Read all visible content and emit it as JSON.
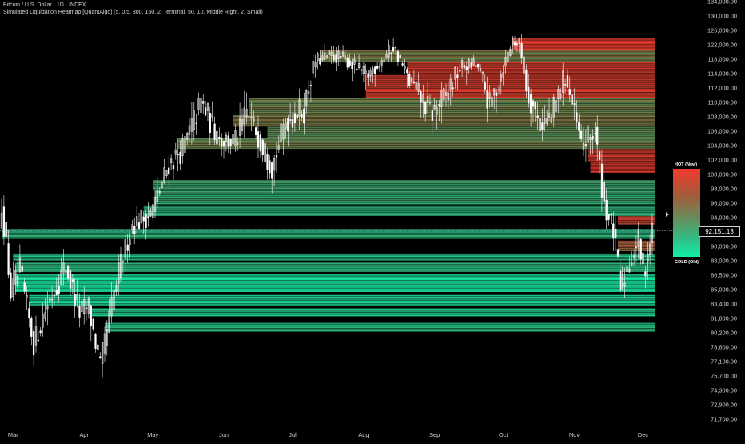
{
  "header": {
    "title": "Bitcoin / U.S. Dollar · 1D · INDEX",
    "indicator": "Simulated Liquidation Heatmap [QuantAlgo] (5, 0.5, 300, 150, 2, Terminal, 50, 10, Middle Right, 2, Small)"
  },
  "legend": {
    "hot_label": "HOT (New)",
    "cold_label": "COLD (Old)",
    "hot_color": "#f23a2e",
    "cold_color": "#12f0a6"
  },
  "current_price": "92,151.13",
  "colors": {
    "background": "#000000",
    "candle_up": "#ffffff",
    "candle_down": "#ffffff",
    "axis_text": "#d1d4dc"
  },
  "chart_data": {
    "type": "candlestick-with-heatmap",
    "y_scale": "log",
    "ylim": [
      71000,
      135000
    ],
    "y_ticks": [
      "134,000.00",
      "130,000.00",
      "126,000.00",
      "122,000.00",
      "118,000.00",
      "114,000.00",
      "112,000.00",
      "110,000.00",
      "108,000.00",
      "106,000.00",
      "104,000.00",
      "102,000.00",
      "100,000.00",
      "98,000.00",
      "96,000.00",
      "94,000.00",
      "92,000.00",
      "90,000.00",
      "88,000.00",
      "86,500.00",
      "85,000.00",
      "83,400.00",
      "81,800.00",
      "80,200.00",
      "78,600.00",
      "77,100.00",
      "75,700.00",
      "74,300.00",
      "72,900.00",
      "71,700.00"
    ],
    "x_ticks": [
      {
        "label": "Mar",
        "date": "2025-03-01"
      },
      {
        "label": "Apr",
        "date": "2025-04-01"
      },
      {
        "label": "May",
        "date": "2025-05-01"
      },
      {
        "label": "Jun",
        "date": "2025-06-01"
      },
      {
        "label": "Jul",
        "date": "2025-07-01"
      },
      {
        "label": "Aug",
        "date": "2025-08-01"
      },
      {
        "label": "Sep",
        "date": "2025-09-01"
      },
      {
        "label": "Oct",
        "date": "2025-10-01"
      },
      {
        "label": "Nov",
        "date": "2025-11-01"
      },
      {
        "label": "Dec",
        "date": "2025-12-01"
      }
    ],
    "x_start_date": "2025-02-24",
    "x_end_date": "2025-12-05",
    "price_path": [
      [
        "2025-02-24",
        96000
      ],
      [
        "2025-02-28",
        84500
      ],
      [
        "2025-03-04",
        87000
      ],
      [
        "2025-03-10",
        79000
      ],
      [
        "2025-03-16",
        83500
      ],
      [
        "2025-03-24",
        87500
      ],
      [
        "2025-03-30",
        82500
      ],
      [
        "2025-04-03",
        83000
      ],
      [
        "2025-04-08",
        76500
      ],
      [
        "2025-04-14",
        84500
      ],
      [
        "2025-04-22",
        93000
      ],
      [
        "2025-04-30",
        94500
      ],
      [
        "2025-05-08",
        101500
      ],
      [
        "2025-05-14",
        103500
      ],
      [
        "2025-05-22",
        110000
      ],
      [
        "2025-05-30",
        105000
      ],
      [
        "2025-06-06",
        104500
      ],
      [
        "2025-06-11",
        108500
      ],
      [
        "2025-06-16",
        105500
      ],
      [
        "2025-06-22",
        101000
      ],
      [
        "2025-06-28",
        107500
      ],
      [
        "2025-07-06",
        109000
      ],
      [
        "2025-07-11",
        117500
      ],
      [
        "2025-07-18",
        119000
      ],
      [
        "2025-07-24",
        118000
      ],
      [
        "2025-08-02",
        113500
      ],
      [
        "2025-08-08",
        117000
      ],
      [
        "2025-08-14",
        121500
      ],
      [
        "2025-08-20",
        113500
      ],
      [
        "2025-08-26",
        110500
      ],
      [
        "2025-08-31",
        108500
      ],
      [
        "2025-09-06",
        111000
      ],
      [
        "2025-09-13",
        116000
      ],
      [
        "2025-09-19",
        116500
      ],
      [
        "2025-09-25",
        109500
      ],
      [
        "2025-09-30",
        114000
      ],
      [
        "2025-10-05",
        123500
      ],
      [
        "2025-10-08",
        122000
      ],
      [
        "2025-10-11",
        112000
      ],
      [
        "2025-10-17",
        107000
      ],
      [
        "2025-10-22",
        108000
      ],
      [
        "2025-10-28",
        114000
      ],
      [
        "2025-11-04",
        104000
      ],
      [
        "2025-11-10",
        106000
      ],
      [
        "2025-11-14",
        96000
      ],
      [
        "2025-11-18",
        92000
      ],
      [
        "2025-11-21",
        85000
      ],
      [
        "2025-11-25",
        88000
      ],
      [
        "2025-11-29",
        91000
      ],
      [
        "2025-12-01",
        86500
      ],
      [
        "2025-12-05",
        92151
      ]
    ],
    "heat_bands": [
      {
        "low": 120500,
        "high": 123800,
        "heat": 0.98,
        "start": "2025-10-05"
      },
      {
        "low": 117200,
        "high": 120500,
        "heat": 0.55,
        "start": "2025-07-13"
      },
      {
        "low": 113800,
        "high": 117200,
        "heat": 0.9,
        "start": "2025-08-20"
      },
      {
        "low": 110600,
        "high": 113800,
        "heat": 0.88,
        "start": "2025-08-02"
      },
      {
        "low": 108200,
        "high": 110600,
        "heat": 0.5,
        "start": "2025-06-12"
      },
      {
        "low": 106600,
        "high": 108200,
        "heat": 0.55,
        "start": "2025-06-05"
      },
      {
        "low": 105000,
        "high": 106600,
        "heat": 0.45,
        "start": "2025-06-20"
      },
      {
        "low": 103500,
        "high": 105000,
        "heat": 0.5,
        "start": "2025-05-12"
      },
      {
        "low": 101800,
        "high": 103500,
        "heat": 0.9,
        "start": "2025-11-07"
      },
      {
        "low": 100200,
        "high": 101800,
        "heat": 0.95,
        "start": "2025-11-08"
      },
      {
        "low": 97700,
        "high": 99200,
        "heat": 0.3,
        "start": "2025-05-01"
      },
      {
        "low": 95800,
        "high": 97700,
        "heat": 0.28,
        "start": "2025-05-02"
      },
      {
        "low": 94200,
        "high": 95700,
        "heat": 0.22,
        "start": "2025-04-27"
      },
      {
        "low": 93000,
        "high": 94200,
        "heat": 0.85,
        "start": "2025-11-20"
      },
      {
        "low": 91000,
        "high": 92400,
        "heat": 0.2,
        "start": "2025-02-24"
      },
      {
        "low": 89300,
        "high": 90800,
        "heat": 0.7,
        "start": "2025-11-20"
      },
      {
        "low": 88000,
        "high": 89000,
        "heat": 0.18,
        "start": "2025-03-01"
      },
      {
        "low": 86800,
        "high": 87800,
        "heat": 0.2,
        "start": "2025-03-02"
      },
      {
        "low": 84700,
        "high": 86600,
        "heat": 0.06,
        "start": "2025-03-02"
      },
      {
        "low": 83200,
        "high": 84400,
        "heat": 0.08,
        "start": "2025-03-08"
      },
      {
        "low": 82000,
        "high": 82900,
        "heat": 0.15,
        "start": "2025-04-04"
      },
      {
        "low": 80300,
        "high": 81300,
        "heat": 0.2,
        "start": "2025-04-10"
      }
    ]
  }
}
